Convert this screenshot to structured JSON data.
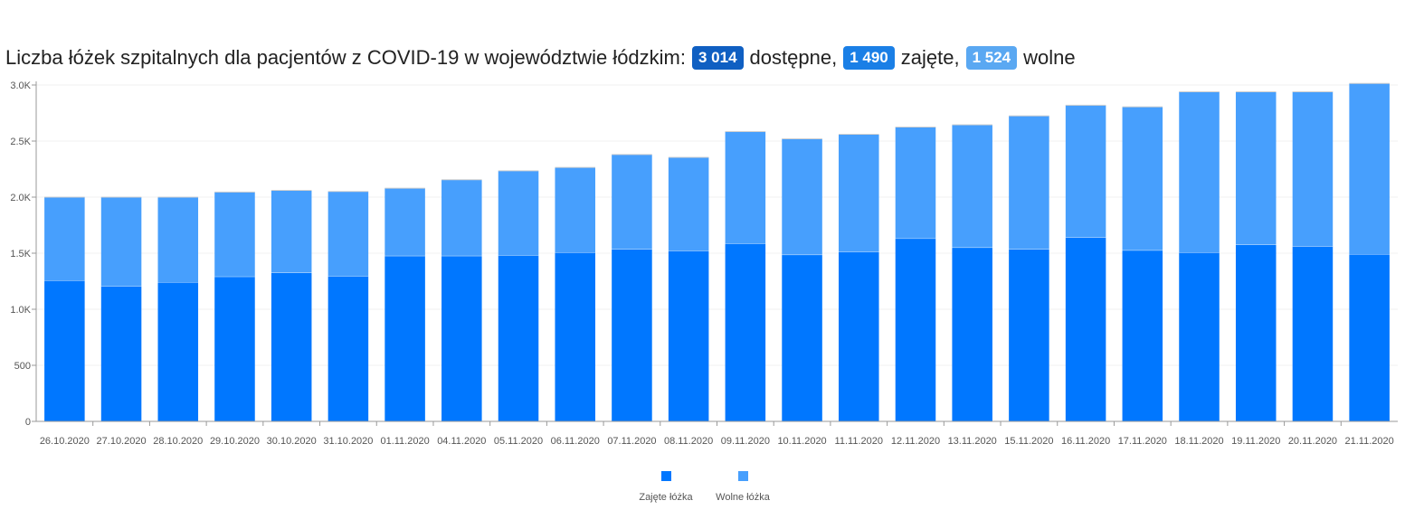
{
  "header": {
    "title_prefix": "Liczba łóżek szpitalnych dla pacjentów z COVID-19 w województwie łódzkim:",
    "available_value": "3 014",
    "available_label": "dostępne,",
    "occupied_value": "1 490",
    "occupied_label": "zajęte,",
    "free_value": "1 524",
    "free_label": "wolne"
  },
  "colors": {
    "available_badge": "#0f5fc2",
    "occupied_badge": "#1a7fe6",
    "free_badge": "#5aa8f2",
    "occupied": "#0077ff",
    "free": "#479ffd"
  },
  "chart_data": {
    "type": "bar",
    "stacked": true,
    "categories": [
      "26.10.2020",
      "27.10.2020",
      "28.10.2020",
      "29.10.2020",
      "30.10.2020",
      "31.10.2020",
      "01.11.2020",
      "04.11.2020",
      "05.11.2020",
      "06.11.2020",
      "07.11.2020",
      "08.11.2020",
      "09.11.2020",
      "10.11.2020",
      "11.11.2020",
      "12.11.2020",
      "13.11.2020",
      "15.11.2020",
      "16.11.2020",
      "17.11.2020",
      "18.11.2020",
      "19.11.2020",
      "20.11.2020",
      "21.11.2020"
    ],
    "series": [
      {
        "name": "Zajęte łóżka",
        "values": [
          1255,
          1205,
          1240,
          1290,
          1325,
          1295,
          1475,
          1475,
          1480,
          1505,
          1535,
          1520,
          1585,
          1485,
          1510,
          1630,
          1550,
          1535,
          1640,
          1525,
          1505,
          1575,
          1560,
          1490
        ]
      },
      {
        "name": "Wolne łóżka",
        "values": [
          745,
          795,
          760,
          755,
          735,
          755,
          605,
          680,
          755,
          760,
          845,
          835,
          1000,
          1035,
          1050,
          995,
          1095,
          1190,
          1180,
          1280,
          1435,
          1365,
          1380,
          1524
        ]
      }
    ],
    "y_ticks": [
      "0",
      "500",
      "1.0K",
      "1.5K",
      "2.0K",
      "2.5K",
      "3.0K"
    ],
    "ylim": [
      0,
      3000
    ],
    "legend": "bottom-center",
    "grid": true
  }
}
